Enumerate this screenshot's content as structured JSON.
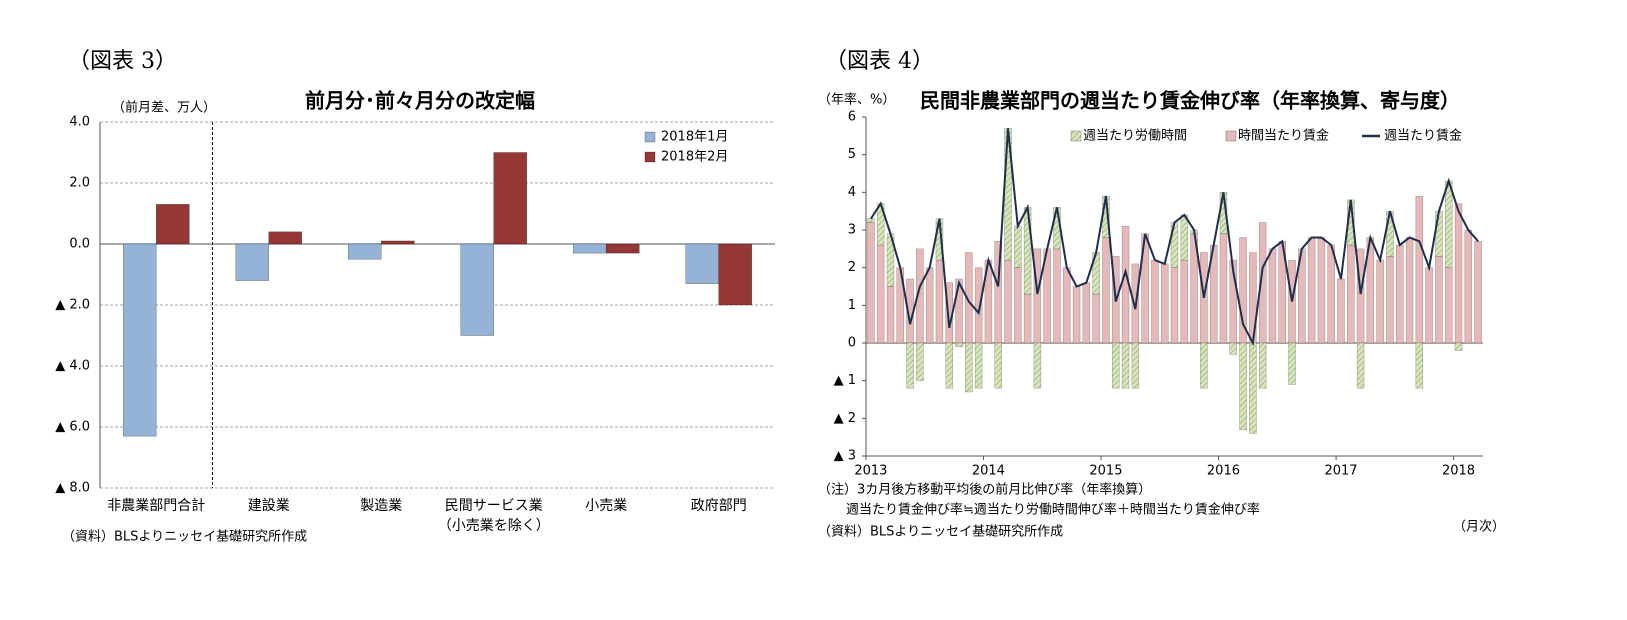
{
  "chart_data": [
    {
      "type": "bar",
      "figure_label": "（図表 3）",
      "title": "前月分･前々月分の改定幅",
      "y_label": "（前月差、万人）",
      "source": "（資料）BLSよりニッセイ基礎研究所作成",
      "categories": [
        "非農業部門合計",
        "建設業",
        "製造業",
        "民間サービス業\n（小売業を除く）",
        "小売業",
        "政府部門"
      ],
      "series": [
        {
          "name": "2018年1月",
          "color": "#95b3d7",
          "values": [
            -6.3,
            -1.2,
            -0.5,
            -3.0,
            -0.3,
            -1.3
          ]
        },
        {
          "name": "2018年2月",
          "color": "#953735",
          "values": [
            1.3,
            0.4,
            0.1,
            3.0,
            -0.3,
            -2.0
          ]
        }
      ],
      "ylim": [
        -8,
        4
      ],
      "yticks": [
        {
          "value": 4,
          "label": "4.0"
        },
        {
          "value": 2,
          "label": "2.0"
        },
        {
          "value": 0,
          "label": "0.0"
        },
        {
          "value": -2,
          "label": "▲ 2.0"
        },
        {
          "value": -4,
          "label": "▲ 4.0"
        },
        {
          "value": -6,
          "label": "▲ 6.0"
        },
        {
          "value": -8,
          "label": "▲ 8.0"
        }
      ],
      "grid": true,
      "legend": "top-right"
    },
    {
      "type": "stacked_bar_line",
      "figure_label": "（図表 4）",
      "title": "民間非農業部門の週当たり賃金伸び率（年率換算、寄与度）",
      "y_label": "（年率、%）",
      "x_label": "（月次）",
      "notes": [
        "（注）3カ月後方移動平均後の前月比伸び率（年率換算）",
        "週当たり賃金伸び率≒週当たり労働時間伸び率＋時間当たり賃金伸び率"
      ],
      "source": "（資料）BLSよりニッセイ基礎研究所作成",
      "categories": [
        "2013",
        null,
        null,
        null,
        null,
        null,
        null,
        null,
        null,
        null,
        null,
        null,
        "2014",
        null,
        null,
        null,
        null,
        null,
        null,
        null,
        null,
        null,
        null,
        null,
        "2015",
        null,
        null,
        null,
        null,
        null,
        null,
        null,
        null,
        null,
        null,
        null,
        "2016",
        null,
        null,
        null,
        null,
        null,
        null,
        null,
        null,
        null,
        null,
        null,
        "2017",
        null,
        null,
        null,
        null,
        null,
        null,
        null,
        null,
        null,
        null,
        null,
        "2018",
        null,
        null
      ],
      "series": [
        {
          "name": "週当たり労働時間",
          "type": "bar",
          "color": "#d7e4bd",
          "pattern": "diagonal",
          "values": [
            0.1,
            1.1,
            1.4,
            0.0,
            -1.2,
            -1.0,
            0.0,
            1.1,
            -1.2,
            -0.1,
            -1.3,
            -1.2,
            0.0,
            -1.2,
            3.5,
            1.1,
            2.3,
            -1.2,
            0.0,
            1.1,
            0.0,
            0.0,
            0.0,
            1.1,
            1.1,
            -1.2,
            -1.2,
            -1.2,
            0.0,
            0.0,
            0.0,
            1.2,
            1.2,
            0.1,
            -1.2,
            0.0,
            1.1,
            -0.3,
            -2.3,
            -2.4,
            -1.2,
            0.0,
            0.0,
            -1.1,
            0.0,
            0.0,
            0.0,
            0.0,
            0.0,
            1.2,
            -1.2,
            0.0,
            0.0,
            1.2,
            0.0,
            0.0,
            -1.2,
            0.0,
            1.2,
            2.3,
            -0.2,
            0.0,
            0.0
          ]
        },
        {
          "name": "時間当たり賃金",
          "type": "bar",
          "color": "#e6b9b8",
          "values": [
            3.2,
            2.6,
            1.5,
            2.0,
            1.7,
            2.5,
            2.0,
            2.2,
            1.6,
            1.7,
            2.4,
            2.0,
            2.2,
            2.7,
            2.2,
            2.0,
            1.3,
            2.5,
            2.5,
            2.5,
            2.0,
            1.5,
            1.6,
            1.3,
            2.8,
            2.3,
            3.1,
            2.1,
            2.9,
            2.2,
            2.1,
            2.0,
            2.2,
            2.9,
            2.4,
            2.6,
            2.9,
            2.2,
            2.8,
            2.4,
            3.2,
            2.5,
            2.7,
            2.2,
            2.5,
            2.8,
            2.8,
            2.6,
            1.7,
            2.6,
            2.5,
            2.8,
            2.2,
            2.3,
            2.6,
            2.8,
            3.9,
            2.0,
            2.3,
            2.0,
            3.7,
            3.0,
            2.7
          ]
        },
        {
          "name": "週当たり賃金",
          "type": "line",
          "color": "#1f2d4e",
          "values": [
            3.3,
            3.7,
            2.9,
            2.0,
            0.5,
            1.5,
            2.0,
            3.3,
            0.4,
            1.6,
            1.1,
            0.8,
            2.2,
            1.5,
            5.7,
            3.1,
            3.6,
            1.3,
            2.5,
            3.6,
            2.0,
            1.5,
            1.6,
            2.4,
            3.9,
            1.1,
            1.9,
            0.9,
            2.9,
            2.2,
            2.1,
            3.2,
            3.4,
            3.0,
            1.2,
            2.6,
            4.0,
            1.9,
            0.5,
            0.0,
            2.0,
            2.5,
            2.7,
            1.1,
            2.5,
            2.8,
            2.8,
            2.6,
            1.7,
            3.8,
            1.3,
            2.8,
            2.2,
            3.5,
            2.6,
            2.8,
            2.7,
            2.0,
            3.5,
            4.3,
            3.5,
            3.0,
            2.7
          ]
        }
      ],
      "ylim": [
        -3,
        6
      ],
      "yticks": [
        6,
        5,
        4,
        3,
        2,
        1,
        0,
        {
          "value": -1,
          "label": "▲ 1"
        },
        {
          "value": -2,
          "label": "▲ 2"
        },
        {
          "value": -3,
          "label": "▲ 3"
        }
      ],
      "grid": false,
      "legend": "top"
    }
  ]
}
